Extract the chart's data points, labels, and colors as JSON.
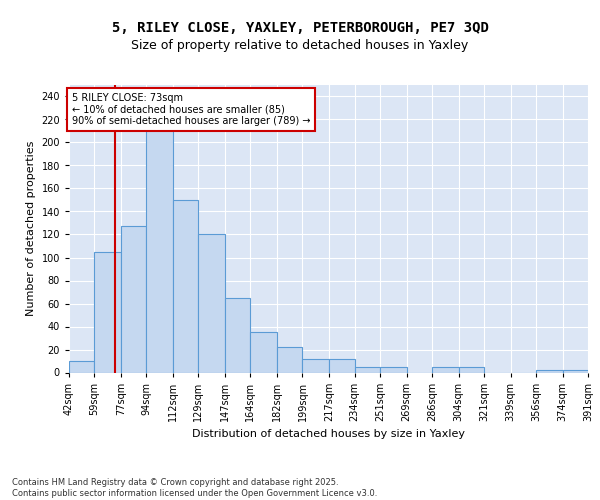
{
  "title_line1": "5, RILEY CLOSE, YAXLEY, PETERBOROUGH, PE7 3QD",
  "title_line2": "Size of property relative to detached houses in Yaxley",
  "xlabel": "Distribution of detached houses by size in Yaxley",
  "ylabel": "Number of detached properties",
  "bin_edges": [
    42,
    59,
    77,
    94,
    112,
    129,
    147,
    164,
    182,
    199,
    217,
    234,
    251,
    269,
    286,
    304,
    321,
    339,
    356,
    374,
    391
  ],
  "bin_labels": [
    "42sqm",
    "59sqm",
    "77sqm",
    "94sqm",
    "112sqm",
    "129sqm",
    "147sqm",
    "164sqm",
    "182sqm",
    "199sqm",
    "217sqm",
    "234sqm",
    "251sqm",
    "269sqm",
    "286sqm",
    "304sqm",
    "321sqm",
    "339sqm",
    "356sqm",
    "374sqm",
    "391sqm"
  ],
  "bar_heights": [
    10,
    105,
    127,
    230,
    150,
    120,
    65,
    35,
    22,
    12,
    12,
    5,
    5,
    0,
    5,
    5,
    0,
    0,
    2,
    2
  ],
  "bar_color": "#c5d8f0",
  "bar_edgecolor": "#5b9bd5",
  "property_size": 73,
  "property_label": "5 RILEY CLOSE: 73sqm",
  "annotation_line1": "← 10% of detached houses are smaller (85)",
  "annotation_line2": "90% of semi-detached houses are larger (789) →",
  "vline_color": "#cc0000",
  "ylim": [
    0,
    250
  ],
  "yticks": [
    0,
    20,
    40,
    60,
    80,
    100,
    120,
    140,
    160,
    180,
    200,
    220,
    240
  ],
  "background_color": "#dce6f5",
  "grid_color": "#ffffff",
  "footer": "Contains HM Land Registry data © Crown copyright and database right 2025.\nContains public sector information licensed under the Open Government Licence v3.0.",
  "title_fontsize": 10,
  "subtitle_fontsize": 9,
  "axis_label_fontsize": 8,
  "tick_fontsize": 7
}
